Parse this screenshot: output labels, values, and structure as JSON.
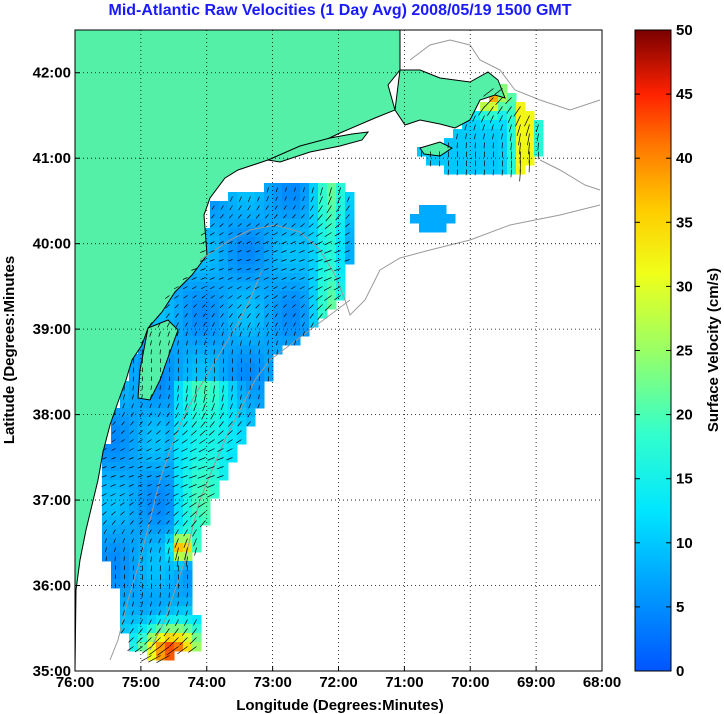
{
  "title": "Mid-Atlantic Raw Velocities (1 Day Avg) 2008/05/19 1500 GMT",
  "xlabel": "Longitude (Degrees:Minutes)",
  "ylabel": "Latitude (Degrees:Minutes",
  "colorbar_label": "Surface Velocity (cm/s)",
  "colors": {
    "land": "#55f0a8",
    "coastline": "#000000",
    "bathymetry": "#9a9a9a",
    "title": "#1a1aff"
  },
  "chart_data": {
    "type": "heatmap",
    "description_free": true,
    "xlim": [
      -76,
      -68
    ],
    "ylim": [
      35,
      42.5
    ],
    "x_tick_labels": [
      "76:00",
      "75:00",
      "74:00",
      "73:00",
      "72:00",
      "71:00",
      "70:00",
      "69:00",
      "68:00"
    ],
    "y_tick_labels": [
      "35:00",
      "36:00",
      "37:00",
      "38:00",
      "39:00",
      "40:00",
      "41:00",
      "42:00"
    ],
    "x_ticks": [
      -76,
      -75,
      -74,
      -73,
      -72,
      -71,
      -70,
      -69,
      -68
    ],
    "y_ticks": [
      35,
      36,
      37,
      38,
      39,
      40,
      41,
      42
    ],
    "grid": true,
    "colorbar": {
      "min": 0,
      "max": 50,
      "tick_labels": [
        "0",
        "5",
        "10",
        "15",
        "20",
        "25",
        "30",
        "35",
        "40",
        "45",
        "50"
      ],
      "colormap": "jet"
    }
  }
}
